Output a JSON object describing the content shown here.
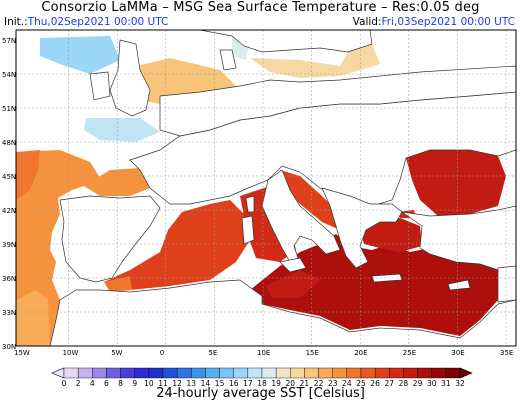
{
  "header": {
    "title": "Consorzio LaMMa –  MSG Sea Surface Temperature – Res:0.05 deg",
    "init_label": "Init.:",
    "init_value": "Thu,02Sep2021  00:00  UTC",
    "valid_label": "Valid:",
    "valid_value": "Fri,03Sep2021  00:00  UTC"
  },
  "map": {
    "lat_labels": [
      "57N",
      "54N",
      "51N",
      "48N",
      "45N",
      "42N",
      "39N",
      "36N",
      "33N",
      "30N"
    ],
    "lon_labels": [
      "15W",
      "10W",
      "5W",
      "0",
      "5E",
      "10E",
      "15E",
      "20E",
      "25E",
      "30E",
      "35E"
    ],
    "land_color": "#ffffff",
    "border_color": "#333333"
  },
  "colorbar": {
    "ticks": [
      "0",
      "2",
      "4",
      "6",
      "8",
      "9",
      "10",
      "11",
      "12",
      "13",
      "14",
      "15",
      "16",
      "17",
      "18",
      "19",
      "20",
      "21",
      "22",
      "23",
      "24",
      "25",
      "26",
      "27",
      "28",
      "29",
      "30",
      "31",
      "32"
    ],
    "colors": [
      "#e8d6f5",
      "#c8b0ee",
      "#9e86e8",
      "#6e5ee0",
      "#4a3edb",
      "#2e2bd0",
      "#1f32c6",
      "#2452d6",
      "#2f72e0",
      "#3e92ea",
      "#58aef0",
      "#78c4f4",
      "#9ad6f6",
      "#bfe5f4",
      "#dcecec",
      "#efe6c8",
      "#f6d9a2",
      "#f8c47a",
      "#f8ac58",
      "#f5923e",
      "#f0762e",
      "#e85a24",
      "#df401c",
      "#d22a16",
      "#c21c12",
      "#ad100c",
      "#960608",
      "#7c0206"
    ],
    "label": "24-hourly average SST [Celsius]"
  }
}
